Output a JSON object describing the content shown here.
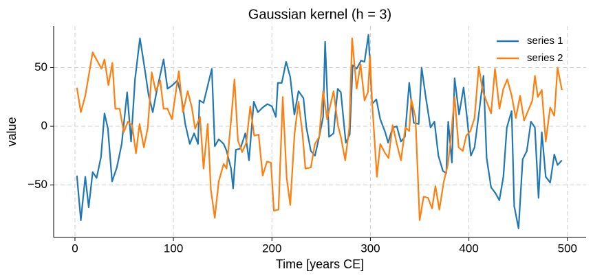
{
  "chart_data": {
    "type": "line",
    "title": "Gaussian kernel (h = 3)",
    "xlabel": "Time [years CE]",
    "ylabel": "value",
    "xlim": [
      -21.6,
      519
    ],
    "ylim": [
      -94.7,
      85.4
    ],
    "xticks": [
      0,
      100,
      200,
      300,
      400,
      500
    ],
    "yticks": [
      {
        "value": -50,
        "label": "−50"
      },
      0,
      50
    ],
    "grid": true,
    "legend": "upper right",
    "series": [
      {
        "name": "series 1",
        "color": "#1f77b4",
        "x": [
          2,
          6,
          10.5,
          14,
          18,
          22,
          26.5,
          30,
          33.5,
          37.7,
          42.6,
          47.5,
          49.6,
          53,
          57,
          61,
          66,
          70.5,
          74.7,
          79,
          83,
          90,
          94,
          99,
          104,
          108,
          112,
          116.6,
          121,
          125,
          126.4,
          130.6,
          135.5,
          139,
          142,
          146,
          151,
          154,
          158.5,
          160.6,
          163.4,
          168,
          173,
          176.7,
          181.6,
          185.8,
          190.6,
          195.5,
          200,
          204,
          206,
          210,
          214.4,
          218.6,
          222.8,
          227,
          232,
          235,
          239.5,
          243.7,
          248,
          252,
          254,
          258,
          262.6,
          266.8,
          270,
          275,
          279,
          282,
          286,
          290.5,
          294,
          298,
          301.7,
          306,
          310,
          315,
          318,
          322.6,
          326.8,
          331,
          335,
          339.4,
          344,
          349,
          352,
          356,
          361,
          365,
          369,
          373.6,
          377,
          379,
          382.7,
          385.5,
          390,
          394.6,
          398,
          402,
          405.7,
          410.6,
          414.8,
          418,
          422.5,
          427,
          430.9,
          435,
          438.5,
          443.4,
          446,
          450.4,
          454.6,
          458.8,
          463,
          467,
          470.7,
          474,
          478,
          482.5,
          486.7,
          490,
          494.4
        ],
        "values": [
          -42,
          -80,
          -43,
          -69,
          -39,
          -44,
          -26,
          11,
          -2,
          -47,
          -35,
          -15,
          2,
          29,
          -13,
          40,
          75,
          51,
          27,
          12,
          30,
          57,
          32,
          35,
          39,
          26,
          2,
          -15,
          -6,
          -15,
          22,
          20,
          37,
          49,
          -17,
          -11,
          -15,
          -21,
          -36,
          -53,
          -20,
          -19,
          -6,
          -29,
          21,
          12,
          16,
          19,
          17,
          8,
          37,
          37,
          55,
          42,
          10,
          30,
          24,
          -1,
          -21,
          -25,
          -9,
          8,
          72,
          -9,
          -6,
          32,
          29,
          -14,
          -7,
          52,
          49,
          56,
          55,
          78,
          19,
          23,
          6,
          -5,
          -14,
          -1,
          0,
          -13,
          -9,
          37,
          3,
          2,
          50,
          26,
          -1,
          4,
          -25,
          -38,
          -40,
          4,
          -31,
          41,
          10,
          33,
          8,
          -25,
          -18,
          14,
          43,
          -27,
          -52,
          -57,
          -63,
          -43,
          -1,
          13,
          -68,
          -87,
          -28,
          -21,
          4,
          -1,
          -61,
          -5,
          -43,
          -48,
          -24,
          -33,
          -29
        ]
      },
      {
        "name": "series 2",
        "color": "#ff7f0e",
        "x": [
          2,
          6,
          10.5,
          18,
          27,
          30,
          34,
          38,
          41,
          45.4,
          49.6,
          53.8,
          58,
          62,
          65.6,
          70,
          74,
          78,
          82,
          86.6,
          90,
          94,
          98.5,
          105.5,
          109.6,
          114.5,
          118.7,
          122,
          127,
          130.6,
          134.8,
          138,
          142,
          146,
          151,
          154,
          158.5,
          162,
          165.5,
          169.7,
          174,
          178,
          182,
          186.5,
          190.6,
          195,
          199,
          202,
          206.7,
          211,
          215,
          218.6,
          223,
          227,
          231,
          234,
          239.5,
          243.7,
          248,
          252,
          256,
          262.6,
          267,
          270,
          274.4,
          278.6,
          281.4,
          286,
          290,
          294,
          297.5,
          299.6,
          301.7,
          306.6,
          310,
          315,
          318.4,
          322.6,
          326.8,
          331,
          335.5,
          339.4,
          341.5,
          345.7,
          350,
          354,
          358.5,
          362.6,
          366,
          370,
          374.3,
          378.5,
          381,
          385.5,
          389.6,
          393.8,
          397.3,
          401.5,
          405.7,
          410,
          414,
          418,
          422.5,
          426.5,
          431,
          435,
          439,
          443.4,
          447.6,
          452,
          456,
          460,
          464.4,
          467,
          470,
          474,
          478,
          482.5,
          486.7,
          490,
          494.4
        ],
        "values": [
          33,
          12,
          26,
          63,
          49,
          57,
          35,
          54,
          15,
          15,
          -5,
          4,
          1,
          -23,
          2,
          -18,
          -1,
          46,
          30,
          39,
          15,
          15,
          6,
          47,
          12,
          30,
          16,
          -2,
          8,
          -36,
          2,
          -54,
          -78,
          -47,
          -32,
          -36,
          5,
          40,
          -12,
          -22,
          -14,
          17,
          -8,
          -7,
          -42,
          -30,
          -31,
          -72,
          -71,
          25,
          -44,
          -67,
          -6,
          21,
          -6,
          -36,
          -35,
          -15,
          -9,
          30,
          6,
          30,
          1,
          -9,
          -29,
          -1,
          75,
          32,
          53,
          22,
          29,
          60,
          21,
          -43,
          -15,
          -23,
          -27,
          1,
          -15,
          -29,
          -1,
          -4,
          23,
          8,
          -80,
          -60,
          -61,
          -70,
          -51,
          -71,
          -48,
          -33,
          -16,
          25,
          -18,
          -21,
          -8,
          -4,
          7,
          51,
          30,
          21,
          11,
          49,
          15,
          32,
          40,
          26,
          7,
          26,
          5,
          13,
          22,
          43,
          25,
          31,
          -13,
          16,
          9,
          50,
          31
        ]
      }
    ]
  }
}
